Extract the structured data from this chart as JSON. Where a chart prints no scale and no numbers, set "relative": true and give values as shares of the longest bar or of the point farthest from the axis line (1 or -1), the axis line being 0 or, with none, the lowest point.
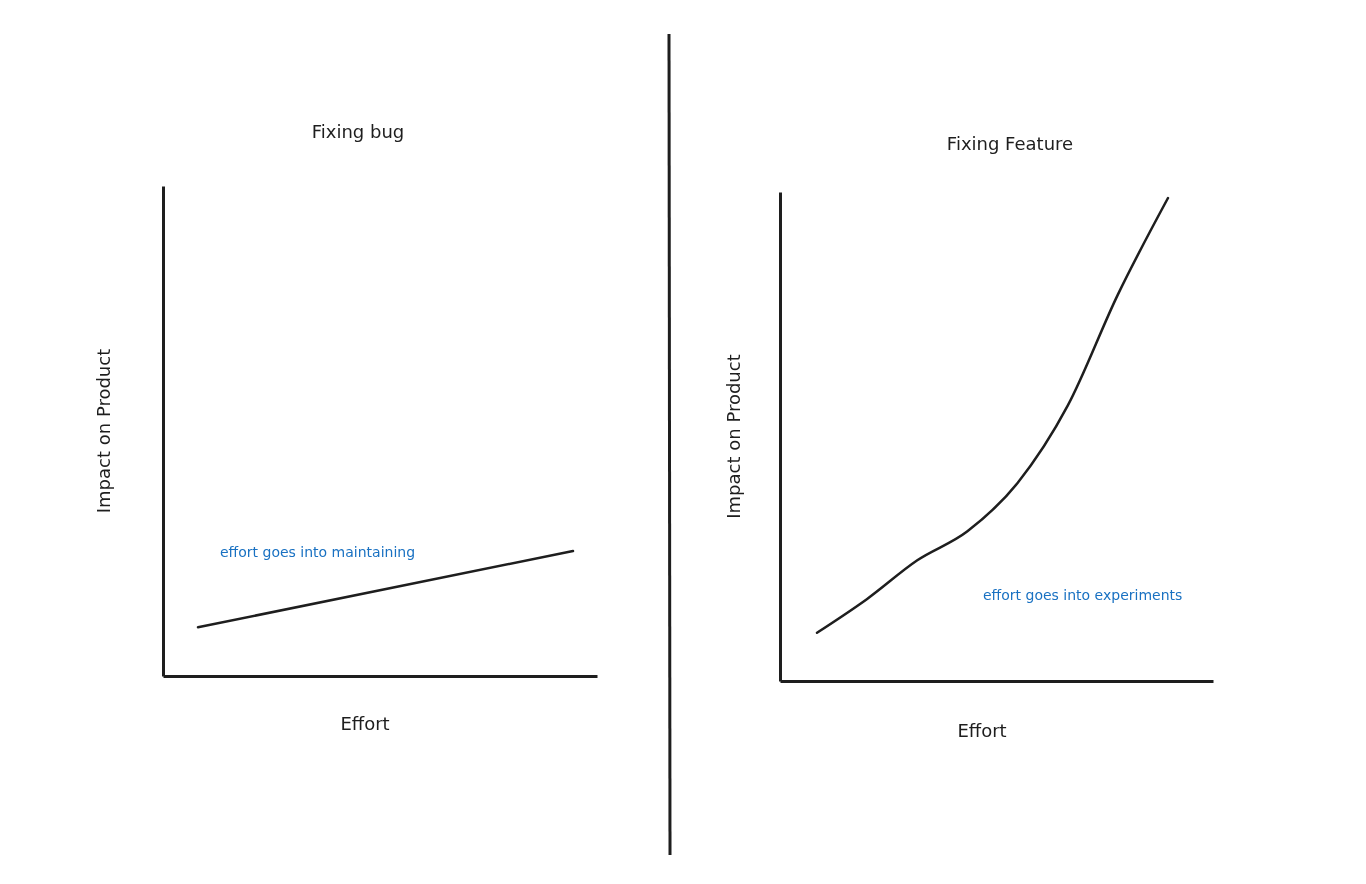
{
  "chart_data": [
    {
      "type": "line",
      "title": "Fixing bug",
      "xlabel": "Effort",
      "ylabel": "Impact on Product",
      "relative": true,
      "categories": [
        null,
        null
      ],
      "series": [
        {
          "color": "#1e1e1e",
          "values": [
            0.39,
            1
          ]
        }
      ],
      "annotations": [
        "effort goes into maintaining"
      ]
    },
    {
      "type": "line",
      "title": "Fixing Feature",
      "xlabel": "Effort",
      "ylabel": "Impact on Product",
      "relative": true,
      "categories": [
        null,
        null,
        null,
        null,
        null,
        null,
        null,
        null
      ],
      "series": [
        {
          "color": "#1e1e1e",
          "values": [
            0.1,
            0.17,
            0.25,
            0.31,
            0.41,
            0.57,
            0.8,
            1
          ]
        }
      ],
      "annotations": [
        "effort goes into experiments"
      ]
    }
  ]
}
